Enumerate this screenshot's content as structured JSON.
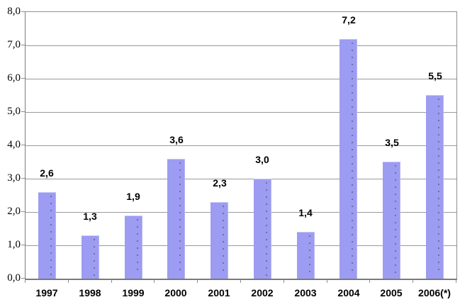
{
  "chart_data": {
    "type": "bar",
    "title": "",
    "xlabel": "",
    "ylabel": "",
    "categories": [
      "1997",
      "1998",
      "1999",
      "2000",
      "2001",
      "2002",
      "2003",
      "2004",
      "2005",
      "2006(*)"
    ],
    "values": [
      2.6,
      1.3,
      1.9,
      3.6,
      2.3,
      3.0,
      1.4,
      7.2,
      3.5,
      5.5
    ],
    "value_labels": [
      "2,6",
      "1,3",
      "1,9",
      "3,6",
      "2,3",
      "3,0",
      "1,4",
      "7,2",
      "3,5",
      "5,5"
    ],
    "y_ticks": [
      8,
      7,
      6,
      5,
      4,
      3,
      2,
      1,
      0
    ],
    "y_tick_labels": [
      "8,0",
      "7,0",
      "6,0",
      "5,0",
      "4,0",
      "3,0",
      "2,0",
      "1,0",
      "0,0"
    ],
    "ylim": [
      0,
      8
    ],
    "grid": true,
    "legend": "none",
    "decimal_separator": ",",
    "colors": {
      "bar_fill": "#9c9cf2",
      "bar_highlight": "#c6c6f8",
      "bar_dot": "#6f6f9e",
      "gridline": "#999999",
      "axis": "#7a7a7a",
      "text": "#000000",
      "background": "#ffffff"
    }
  }
}
